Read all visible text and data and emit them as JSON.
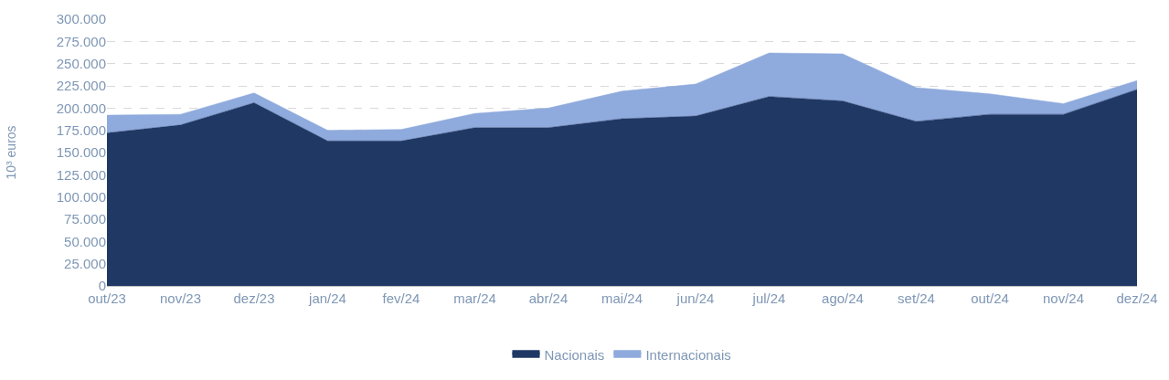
{
  "chart_data": {
    "type": "area",
    "stacked": true,
    "ylabel": "10³ euros",
    "categories": [
      "out/23",
      "nov/23",
      "dez/23",
      "jan/24",
      "fev/24",
      "mar/24",
      "abr/24",
      "mai/24",
      "jun/24",
      "jul/24",
      "ago/24",
      "set/24",
      "out/24",
      "nov/24",
      "dez/24"
    ],
    "series": [
      {
        "name": "Nacionais",
        "color": "#203864",
        "values": [
          172000,
          181000,
          206000,
          163000,
          163000,
          178000,
          178000,
          188000,
          191000,
          213000,
          208000,
          185000,
          193000,
          193000,
          221000
        ]
      },
      {
        "name": "Internacionais",
        "color": "#8faadc",
        "values": [
          20000,
          12000,
          11000,
          12000,
          13000,
          16000,
          22000,
          31000,
          36000,
          49000,
          53000,
          38000,
          23000,
          12000,
          10000
        ]
      }
    ],
    "ylim": [
      0,
      300000
    ],
    "yticks": [
      0,
      {
        "value": 25000,
        "label": "25.000"
      },
      {
        "value": 50000,
        "label": "50.000"
      },
      {
        "value": 75000,
        "label": "75.000"
      },
      {
        "value": 100000,
        "label": "100.000"
      },
      {
        "value": 125000,
        "label": "125.000"
      },
      {
        "value": 150000,
        "label": "150.000"
      },
      {
        "value": 175000,
        "label": "175.000"
      },
      {
        "value": 200000,
        "label": "200.000"
      },
      {
        "value": 225000,
        "label": "225.000"
      },
      {
        "value": 250000,
        "label": "250.000"
      },
      {
        "value": 275000,
        "label": "275.000"
      },
      {
        "value": 300000,
        "label": "300.000"
      }
    ],
    "grid": "y",
    "legend": "bottom"
  }
}
